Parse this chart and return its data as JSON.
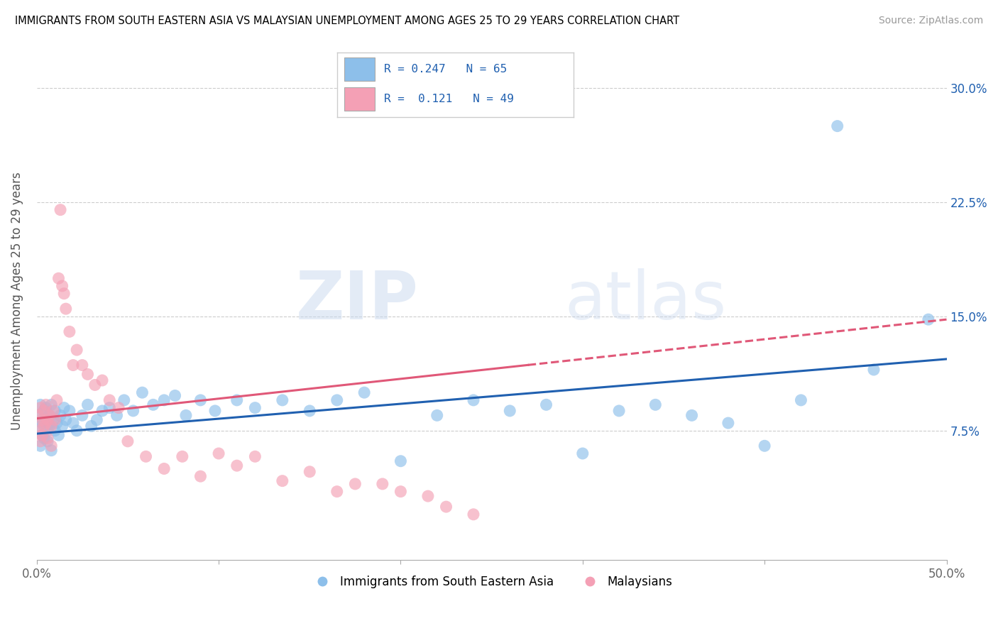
{
  "title": "IMMIGRANTS FROM SOUTH EASTERN ASIA VS MALAYSIAN UNEMPLOYMENT AMONG AGES 25 TO 29 YEARS CORRELATION CHART",
  "source": "Source: ZipAtlas.com",
  "ylabel": "Unemployment Among Ages 25 to 29 years",
  "xlim": [
    0.0,
    0.5
  ],
  "ylim": [
    -0.01,
    0.33
  ],
  "xticks": [
    0.0,
    0.1,
    0.2,
    0.3,
    0.4,
    0.5
  ],
  "xticklabels": [
    "0.0%",
    "",
    "",
    "",
    "",
    "50.0%"
  ],
  "yticks": [
    0.0,
    0.075,
    0.15,
    0.225,
    0.3
  ],
  "yticklabels": [
    "",
    "7.5%",
    "15.0%",
    "22.5%",
    "30.0%"
  ],
  "legend_labels": [
    "Immigrants from South Eastern Asia",
    "Malaysians"
  ],
  "blue_R": "0.247",
  "blue_N": "65",
  "pink_R": "0.121",
  "pink_N": "49",
  "blue_color": "#8dbfea",
  "pink_color": "#f4a0b5",
  "blue_line_color": "#2060b0",
  "pink_line_color": "#e05878",
  "watermark_zip": "ZIP",
  "watermark_atlas": "atlas",
  "blue_scatter_x": [
    0.001,
    0.001,
    0.002,
    0.002,
    0.003,
    0.003,
    0.004,
    0.004,
    0.005,
    0.005,
    0.006,
    0.006,
    0.007,
    0.007,
    0.008,
    0.008,
    0.009,
    0.01,
    0.01,
    0.011,
    0.012,
    0.013,
    0.014,
    0.015,
    0.016,
    0.018,
    0.02,
    0.022,
    0.025,
    0.028,
    0.03,
    0.033,
    0.036,
    0.04,
    0.044,
    0.048,
    0.053,
    0.058,
    0.064,
    0.07,
    0.076,
    0.082,
    0.09,
    0.098,
    0.11,
    0.12,
    0.135,
    0.15,
    0.165,
    0.18,
    0.2,
    0.22,
    0.24,
    0.26,
    0.28,
    0.3,
    0.32,
    0.34,
    0.36,
    0.38,
    0.4,
    0.42,
    0.44,
    0.46,
    0.49
  ],
  "blue_scatter_y": [
    0.085,
    0.078,
    0.092,
    0.065,
    0.08,
    0.072,
    0.088,
    0.07,
    0.082,
    0.09,
    0.075,
    0.068,
    0.085,
    0.078,
    0.092,
    0.062,
    0.082,
    0.075,
    0.088,
    0.08,
    0.072,
    0.085,
    0.078,
    0.09,
    0.082,
    0.088,
    0.08,
    0.075,
    0.085,
    0.092,
    0.078,
    0.082,
    0.088,
    0.09,
    0.085,
    0.095,
    0.088,
    0.1,
    0.092,
    0.095,
    0.098,
    0.085,
    0.095,
    0.088,
    0.095,
    0.09,
    0.095,
    0.088,
    0.095,
    0.1,
    0.055,
    0.085,
    0.095,
    0.088,
    0.092,
    0.06,
    0.088,
    0.092,
    0.085,
    0.08,
    0.065,
    0.095,
    0.275,
    0.115,
    0.148
  ],
  "pink_scatter_x": [
    0.001,
    0.001,
    0.002,
    0.002,
    0.003,
    0.003,
    0.004,
    0.004,
    0.005,
    0.005,
    0.006,
    0.006,
    0.007,
    0.008,
    0.008,
    0.009,
    0.01,
    0.011,
    0.012,
    0.013,
    0.014,
    0.015,
    0.016,
    0.018,
    0.02,
    0.022,
    0.025,
    0.028,
    0.032,
    0.036,
    0.04,
    0.045,
    0.05,
    0.06,
    0.07,
    0.08,
    0.09,
    0.1,
    0.11,
    0.12,
    0.135,
    0.15,
    0.165,
    0.175,
    0.19,
    0.2,
    0.215,
    0.225,
    0.24
  ],
  "pink_scatter_y": [
    0.085,
    0.075,
    0.09,
    0.068,
    0.082,
    0.072,
    0.088,
    0.078,
    0.08,
    0.092,
    0.082,
    0.07,
    0.085,
    0.078,
    0.065,
    0.088,
    0.082,
    0.095,
    0.175,
    0.22,
    0.17,
    0.165,
    0.155,
    0.14,
    0.118,
    0.128,
    0.118,
    0.112,
    0.105,
    0.108,
    0.095,
    0.09,
    0.068,
    0.058,
    0.05,
    0.058,
    0.045,
    0.06,
    0.052,
    0.058,
    0.042,
    0.048,
    0.035,
    0.04,
    0.04,
    0.035,
    0.032,
    0.025,
    0.02
  ],
  "blue_trendline_x": [
    0.0,
    0.5
  ],
  "blue_trendline_y": [
    0.073,
    0.122
  ],
  "pink_trendline_x": [
    0.0,
    0.5
  ],
  "pink_trendline_y": [
    0.083,
    0.148
  ]
}
